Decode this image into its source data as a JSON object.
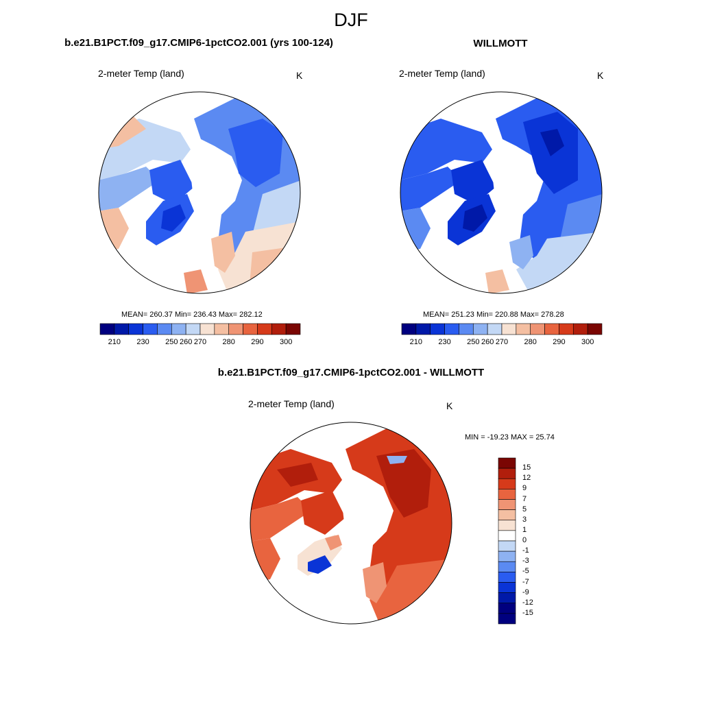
{
  "title": "DJF",
  "panels": [
    {
      "id": "model",
      "title": "b.e21.B1PCT.f09_g17.CMIP6-1pctCO2.001 (yrs 100-124)",
      "variable": "2-meter Temp (land)",
      "units": "K",
      "stats": "MEAN= 260.37  Min= 236.43  Max= 282.12"
    },
    {
      "id": "obs",
      "title": "WILLMOTT",
      "variable": "2-meter Temp (land)",
      "units": "K",
      "stats": "MEAN= 251.23  Min= 220.88  Max= 278.28"
    },
    {
      "id": "diff",
      "title": "b.e21.B1PCT.f09_g17.CMIP6-1pctCO2.001 - WILLMOTT",
      "variable": "2-meter Temp (land)",
      "units": "K",
      "stats": "MIN = -19.23 MAX =  25.74"
    }
  ],
  "abs_colorbar": {
    "labels": [
      "210",
      "230",
      "250",
      "260",
      "270",
      "280",
      "290",
      "300"
    ],
    "colors": [
      "#00007f",
      "#0019a8",
      "#0a34d6",
      "#2a5cf0",
      "#5b8af2",
      "#8eb2f2",
      "#c3d8f5",
      "#f7e2d3",
      "#f4bfa2",
      "#ef9474",
      "#e8643f",
      "#d63a1a",
      "#b11e0c",
      "#7a0603"
    ]
  },
  "diff_colorbar": {
    "labels": [
      "15",
      "12",
      "9",
      "7",
      "5",
      "3",
      "1",
      "0",
      "-1",
      "-3",
      "-5",
      "-7",
      "-9",
      "-12",
      "-15"
    ],
    "colors": [
      "#7a0603",
      "#b11e0c",
      "#d63a1a",
      "#e8643f",
      "#ef9474",
      "#f4bfa2",
      "#f7e2d3",
      "#ffffff",
      "#c3d8f5",
      "#8eb2f2",
      "#5b8af2",
      "#2a5cf0",
      "#0a34d6",
      "#0019a8",
      "#00007f",
      "#00007f"
    ]
  }
}
